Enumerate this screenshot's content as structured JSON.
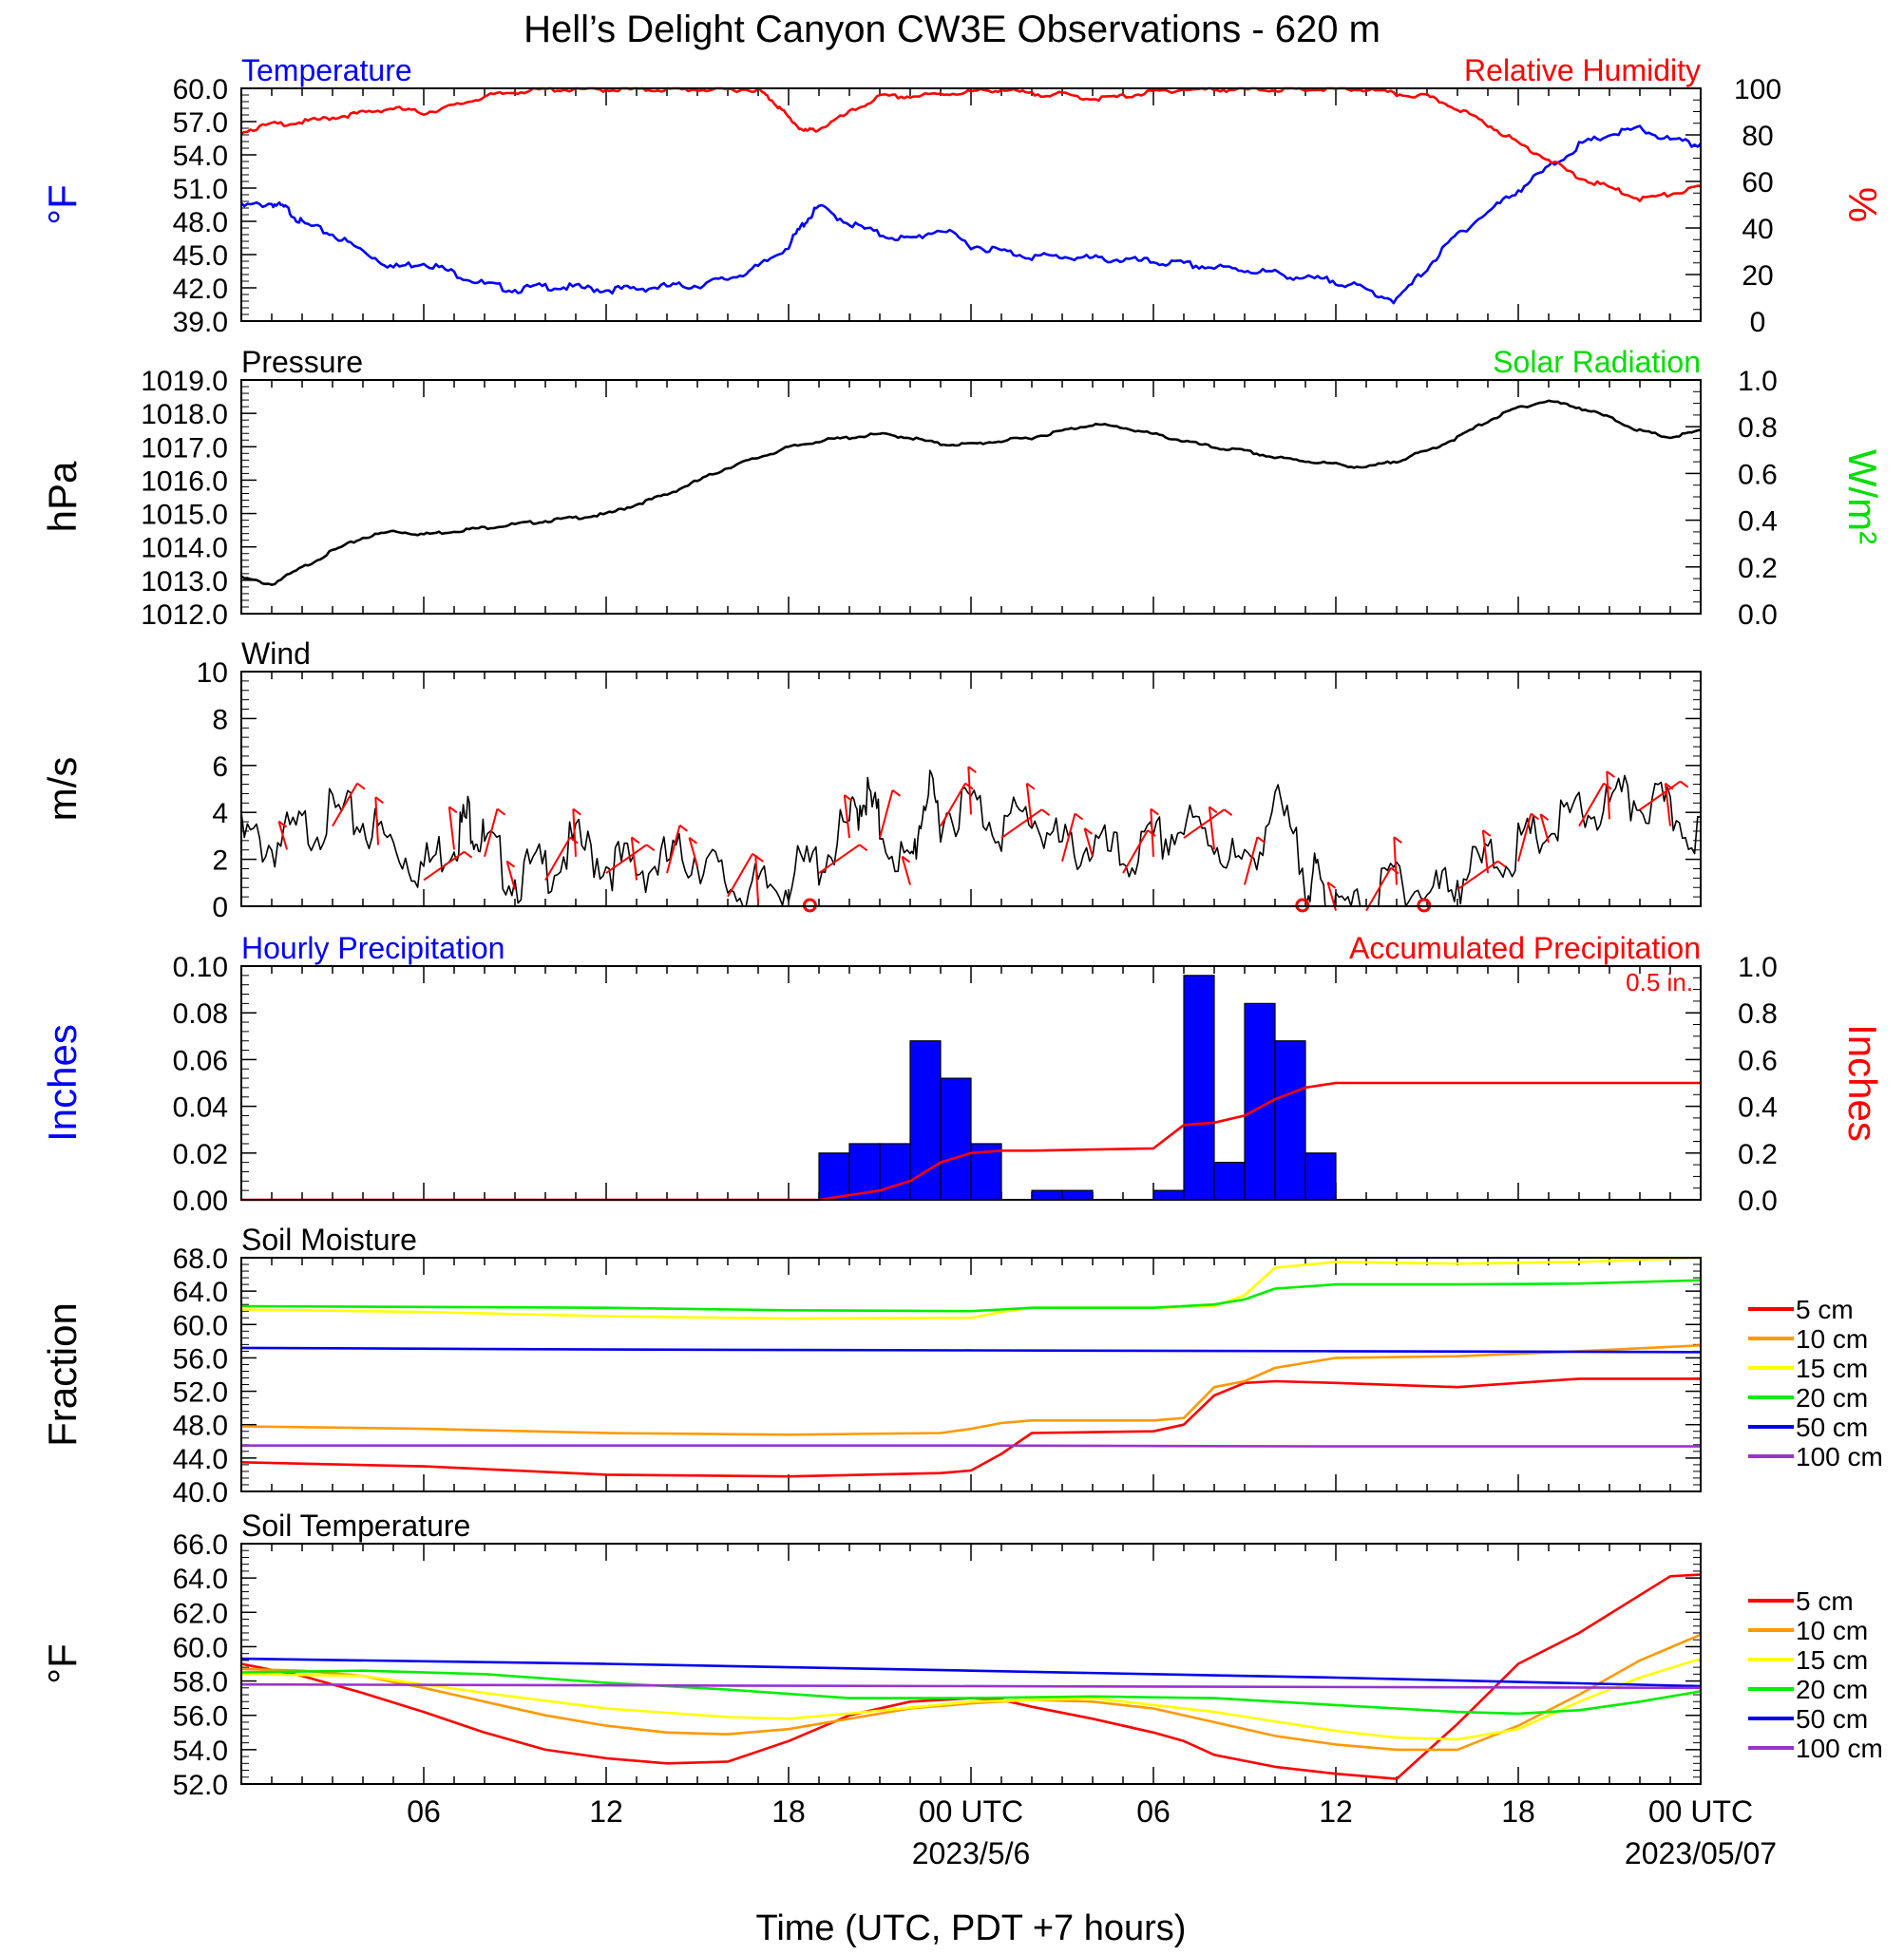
{
  "page_title": "Hell’s Delight Canyon CW3E Observations - 620 m",
  "x_axis": {
    "ticks": [
      "06",
      "12",
      "18",
      "00 UTC",
      "06",
      "12",
      "18",
      "00 UTC"
    ],
    "dates": [
      "2023/5/6",
      "2023/05/07"
    ],
    "label": "Time (UTC, PDT +7 hours)"
  },
  "colors": {
    "temperature": "#0000ff",
    "humidity": "#ff0000",
    "pressure": "#000000",
    "solar": "#00dd00",
    "wind": "#000000",
    "barb": "#ff0000",
    "hourly_precip": "#0000ff",
    "accum_precip": "#ff0000",
    "depth_5": "#ff0000",
    "depth_10": "#ff9900",
    "depth_15": "#ffff00",
    "depth_20": "#00ee00",
    "depth_50": "#0000ee",
    "depth_100": "#9933cc"
  },
  "chart_data": [
    {
      "type": "line",
      "panel": "temperature_humidity",
      "title_left": "Temperature",
      "title_right": "Relative Humidity",
      "ylabel_left": "°F",
      "ylabel_right": "%",
      "ylim_left": [
        39,
        60
      ],
      "ylim_right": [
        0,
        100
      ],
      "yticks_left": [
        "39.0",
        "42.0",
        "45.0",
        "48.0",
        "51.0",
        "54.0",
        "57.0",
        "60.0"
      ],
      "yticks_right": [
        "0",
        "20",
        "40",
        "60",
        "80",
        "100"
      ],
      "xlim_hours": [
        0,
        48
      ],
      "series": [
        {
          "name": "Temperature",
          "axis": "left",
          "x": [
            0,
            1,
            1.5,
            2,
            3,
            4,
            5,
            6,
            7,
            8,
            9,
            10,
            11,
            12,
            13,
            14,
            15,
            16,
            17,
            18,
            18.5,
            19,
            20,
            21,
            22,
            23,
            24,
            25,
            26,
            27,
            28,
            29,
            30,
            31,
            32,
            33,
            34,
            35,
            36,
            37,
            38,
            39,
            40,
            41,
            42,
            43,
            44,
            45,
            46,
            47,
            48
          ],
          "y": [
            49.5,
            49.8,
            49.3,
            48,
            47,
            45.5,
            44,
            44.5,
            43.5,
            42.5,
            42,
            42.3,
            42.2,
            42,
            42.1,
            42.3,
            42.4,
            43,
            44,
            46,
            48,
            49.5,
            48,
            47,
            46.5,
            47.5,
            46,
            45.5,
            45,
            45,
            44.8,
            44.7,
            44.5,
            44.3,
            44,
            43.8,
            43.5,
            43,
            42.8,
            42,
            41,
            44,
            47,
            49,
            51,
            53,
            55,
            56,
            56.5,
            55.5,
            55
          ]
        },
        {
          "name": "Relative Humidity",
          "axis": "right",
          "x": [
            0,
            1,
            2,
            3,
            4,
            5,
            6,
            7,
            8,
            9,
            10,
            11,
            12,
            13,
            14,
            15,
            16,
            17,
            17.5,
            18,
            18.5,
            19,
            20,
            21,
            22,
            23,
            24,
            25,
            26,
            27,
            28,
            29,
            30,
            31,
            32,
            33,
            34,
            35,
            36,
            37,
            38,
            39,
            40,
            41,
            42,
            43,
            44,
            45,
            46,
            47,
            48
          ],
          "y": [
            82,
            85,
            86,
            88,
            90,
            92,
            90,
            93,
            97,
            99,
            100,
            100,
            100,
            100,
            100,
            100,
            100,
            100,
            95,
            88,
            82,
            83,
            90,
            97,
            97,
            98,
            99,
            100,
            98,
            98,
            96,
            97,
            99,
            100,
            100,
            100,
            100,
            100,
            100,
            100,
            98,
            97,
            92,
            85,
            77,
            70,
            62,
            58,
            53,
            55,
            58
          ]
        }
      ]
    },
    {
      "type": "line",
      "panel": "pressure_solar",
      "title_left": "Pressure",
      "title_right": "Solar Radiation",
      "ylabel_left": "hPa",
      "ylabel_right": "W/m²",
      "ylim_left": [
        1012,
        1019
      ],
      "ylim_right": [
        0,
        1
      ],
      "yticks_left": [
        "1012.0",
        "1013.0",
        "1014.0",
        "1015.0",
        "1016.0",
        "1017.0",
        "1018.0",
        "1019.0"
      ],
      "yticks_right": [
        "0.0",
        "0.2",
        "0.4",
        "0.6",
        "0.8",
        "1.0"
      ],
      "xlim_hours": [
        0,
        48
      ],
      "series": [
        {
          "name": "Pressure",
          "axis": "left",
          "x": [
            0,
            1,
            2,
            3,
            4,
            5,
            6,
            7,
            8,
            9,
            10,
            11,
            12,
            13,
            14,
            15,
            16,
            17,
            18,
            19,
            20,
            21,
            22,
            23,
            24,
            25,
            26,
            27,
            28,
            29,
            30,
            31,
            32,
            33,
            34,
            35,
            36,
            37,
            38,
            39,
            40,
            41,
            42,
            43,
            44,
            45,
            46,
            47,
            48
          ],
          "y": [
            1013.1,
            1012.9,
            1013.4,
            1013.9,
            1014.3,
            1014.5,
            1014.4,
            1014.5,
            1014.6,
            1014.7,
            1014.8,
            1014.9,
            1015.0,
            1015.3,
            1015.6,
            1016.0,
            1016.4,
            1016.7,
            1017.0,
            1017.2,
            1017.3,
            1017.4,
            1017.3,
            1017.1,
            1017.1,
            1017.2,
            1017.3,
            1017.5,
            1017.7,
            1017.6,
            1017.4,
            1017.2,
            1017.0,
            1016.9,
            1016.7,
            1016.6,
            1016.5,
            1016.4,
            1016.6,
            1016.9,
            1017.3,
            1017.8,
            1018.2,
            1018.4,
            1018.2,
            1017.9,
            1017.5,
            1017.3,
            1017.5
          ]
        }
      ]
    },
    {
      "type": "line",
      "panel": "wind",
      "title_left": "Wind",
      "ylabel_left": "m/s",
      "ylim_left": [
        0,
        10
      ],
      "yticks_left": [
        "0",
        "2",
        "4",
        "6",
        "8",
        "10"
      ],
      "xlim_hours": [
        0,
        48
      ],
      "series": [
        {
          "name": "Wind",
          "axis": "left",
          "x": [
            0,
            1,
            2,
            3,
            4,
            5,
            6,
            7,
            7.5,
            8,
            9,
            10,
            11,
            12,
            13,
            14,
            15,
            16,
            17,
            18,
            19,
            20,
            20.5,
            21,
            22,
            22.5,
            23,
            24,
            25,
            26,
            27,
            28,
            29,
            30,
            31,
            32,
            33,
            34,
            35,
            35.5,
            36,
            37,
            38,
            39,
            40,
            41,
            42,
            43,
            44,
            45,
            46,
            47,
            48
          ],
          "y": [
            3.5,
            3.2,
            3.8,
            4.5,
            4.2,
            3.2,
            2.2,
            3.5,
            4.5,
            3.2,
            1.8,
            2.2,
            3.2,
            2.5,
            2.2,
            2.5,
            2.8,
            1.5,
            1.2,
            1.8,
            2.5,
            4,
            5.5,
            4,
            2,
            5.5,
            4.5,
            5,
            4,
            4.5,
            3,
            3.2,
            2.5,
            3.2,
            4,
            3.5,
            2,
            5,
            2,
            1.5,
            0.3,
            0.3,
            2,
            1,
            1.8,
            2.5,
            3,
            3.8,
            4.5,
            4.8,
            5.2,
            4.5,
            3.8
          ]
        }
      ],
      "barb_markers": "wind barbs along the series",
      "calm_markers_hours": [
        18.7,
        34.9,
        38.9
      ]
    },
    {
      "type": "bar",
      "panel": "precipitation",
      "title_left": "Hourly Precipitation",
      "title_right": "Accumulated Precipitation",
      "total_label": "0.5 in.",
      "ylabel_left": "Inches",
      "ylabel_right": "Inches",
      "ylim_left": [
        0,
        0.1
      ],
      "ylim_right": [
        0,
        1
      ],
      "yticks_left": [
        "0.00",
        "0.02",
        "0.04",
        "0.06",
        "0.08",
        "0.10"
      ],
      "yticks_right": [
        "0.0",
        "0.2",
        "0.4",
        "0.6",
        "0.8",
        "1.0"
      ],
      "xlim_hours": [
        0,
        48
      ],
      "hourly_bars": [
        {
          "hour": 19,
          "value": 0.02
        },
        {
          "hour": 20,
          "value": 0.024
        },
        {
          "hour": 21,
          "value": 0.024
        },
        {
          "hour": 22,
          "value": 0.068
        },
        {
          "hour": 23,
          "value": 0.052
        },
        {
          "hour": 24,
          "value": 0.024
        },
        {
          "hour": 26,
          "value": 0.004
        },
        {
          "hour": 27,
          "value": 0.004
        },
        {
          "hour": 30,
          "value": 0.004
        },
        {
          "hour": 31,
          "value": 0.096
        },
        {
          "hour": 32,
          "value": 0.016
        },
        {
          "hour": 33,
          "value": 0.084
        },
        {
          "hour": 34,
          "value": 0.068
        },
        {
          "hour": 35,
          "value": 0.02
        }
      ],
      "series": [
        {
          "name": "Accumulated Precipitation",
          "axis": "right",
          "x": [
            0,
            19,
            20,
            21,
            22,
            23,
            23.5,
            24,
            25,
            26,
            30,
            31,
            32,
            33,
            34,
            35,
            36,
            48
          ],
          "y": [
            0,
            0,
            0.02,
            0.04,
            0.08,
            0.16,
            0.18,
            0.2,
            0.21,
            0.21,
            0.22,
            0.32,
            0.33,
            0.36,
            0.43,
            0.48,
            0.5,
            0.5
          ]
        }
      ]
    },
    {
      "type": "line",
      "panel": "soil_moisture",
      "title_left": "Soil Moisture",
      "ylabel_left": "Fraction",
      "ylim_left": [
        40,
        68
      ],
      "yticks_left": [
        "40.0",
        "44.0",
        "48.0",
        "52.0",
        "56.0",
        "60.0",
        "64.0",
        "68.0"
      ],
      "xlim_hours": [
        0,
        48
      ],
      "series": [
        {
          "name": "5 cm",
          "x": [
            0,
            6,
            12,
            18,
            23,
            24,
            25,
            26,
            30,
            31,
            32,
            33,
            34,
            36,
            40,
            44,
            48
          ],
          "y": [
            43.5,
            43,
            42,
            41.8,
            42.2,
            42.5,
            44.5,
            47,
            47.2,
            48,
            51.5,
            53,
            53.2,
            53,
            52.5,
            53.5,
            53.5
          ]
        },
        {
          "name": "10 cm",
          "x": [
            0,
            6,
            12,
            18,
            23,
            24,
            25,
            26,
            30,
            31,
            32,
            33,
            34,
            36,
            40,
            44,
            48
          ],
          "y": [
            47.8,
            47.5,
            47,
            46.8,
            47,
            47.5,
            48.2,
            48.5,
            48.5,
            48.8,
            52.5,
            53.2,
            54.8,
            56,
            56.2,
            56.8,
            57.5
          ]
        },
        {
          "name": "15 cm",
          "x": [
            0,
            6,
            12,
            18,
            24,
            25,
            26,
            30,
            32,
            33,
            34,
            36,
            40,
            44,
            48
          ],
          "y": [
            61.8,
            61.5,
            61,
            60.7,
            60.8,
            61.5,
            62,
            62,
            62.2,
            63.5,
            66.8,
            67.5,
            67.3,
            67.5,
            68
          ]
        },
        {
          "name": "20 cm",
          "x": [
            0,
            6,
            12,
            18,
            24,
            25,
            26,
            30,
            32,
            33,
            34,
            36,
            40,
            44,
            48
          ],
          "y": [
            62.2,
            62.1,
            62,
            61.7,
            61.6,
            61.8,
            62,
            62,
            62.4,
            63,
            64.3,
            64.8,
            64.8,
            64.9,
            65.3
          ]
        },
        {
          "name": "50 cm",
          "x": [
            0,
            12,
            24,
            36,
            48
          ],
          "y": [
            57.2,
            57,
            56.9,
            56.8,
            56.7
          ]
        },
        {
          "name": "100 cm",
          "x": [
            0,
            12,
            24,
            36,
            48
          ],
          "y": [
            45.5,
            45.5,
            45.5,
            45.4,
            45.4
          ]
        }
      ]
    },
    {
      "type": "line",
      "panel": "soil_temperature",
      "title_left": "Soil Temperature",
      "ylabel_left": "°F",
      "ylim_left": [
        52,
        66
      ],
      "yticks_left": [
        "52.0",
        "54.0",
        "56.0",
        "58.0",
        "60.0",
        "62.0",
        "64.0",
        "66.0"
      ],
      "xlim_hours": [
        0,
        48
      ],
      "series": [
        {
          "name": "5 cm",
          "x": [
            0,
            2,
            4,
            6,
            8,
            10,
            12,
            14,
            16,
            18,
            20,
            22,
            24,
            25,
            26,
            28,
            30,
            31,
            32,
            34,
            36,
            38,
            40,
            42,
            44,
            46,
            47,
            48
          ],
          "y": [
            59,
            58.3,
            57.3,
            56.2,
            55,
            54,
            53.5,
            53.2,
            53.3,
            54.5,
            56,
            56.8,
            57,
            56.9,
            56.5,
            55.8,
            55,
            54.5,
            53.7,
            53,
            52.6,
            52.3,
            55.5,
            59,
            60.8,
            63,
            64.1,
            64.2
          ]
        },
        {
          "name": "10 cm",
          "x": [
            0,
            2,
            4,
            6,
            8,
            10,
            12,
            14,
            16,
            18,
            20,
            22,
            24,
            26,
            28,
            30,
            32,
            34,
            36,
            38,
            40,
            42,
            44,
            46,
            48
          ],
          "y": [
            58.7,
            58.6,
            58.3,
            57.6,
            56.8,
            56,
            55.4,
            55,
            54.9,
            55.2,
            55.8,
            56.4,
            56.7,
            56.9,
            56.8,
            56.4,
            55.6,
            54.8,
            54.3,
            54,
            54,
            55.4,
            57.2,
            59.2,
            60.7
          ]
        },
        {
          "name": "15 cm",
          "x": [
            0,
            4,
            8,
            12,
            16,
            18,
            20,
            24,
            28,
            32,
            36,
            38,
            40,
            42,
            44,
            46,
            48
          ],
          "y": [
            58.4,
            58.3,
            57.3,
            56.4,
            55.9,
            55.8,
            56.1,
            56.8,
            57,
            56.2,
            55.1,
            54.7,
            54.6,
            55.2,
            56.8,
            58.2,
            59.3
          ]
        },
        {
          "name": "20 cm",
          "x": [
            0,
            4,
            8,
            12,
            16,
            20,
            24,
            28,
            32,
            36,
            40,
            42,
            44,
            46,
            48
          ],
          "y": [
            58.5,
            58.6,
            58.4,
            57.9,
            57.5,
            57,
            57,
            57.1,
            57,
            56.6,
            56.2,
            56.1,
            56.3,
            56.8,
            57.4
          ]
        },
        {
          "name": "50 cm",
          "x": [
            0,
            12,
            24,
            36,
            48
          ],
          "y": [
            59.3,
            59,
            58.6,
            58.2,
            57.7
          ]
        },
        {
          "name": "100 cm",
          "x": [
            0,
            48
          ],
          "y": [
            57.8,
            57.6
          ]
        }
      ]
    }
  ]
}
